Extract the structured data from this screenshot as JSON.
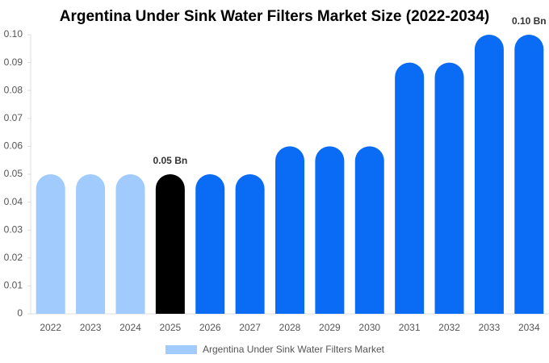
{
  "chart_data": {
    "type": "bar",
    "title": "Argentina Under Sink Water Filters Market Size (2022-2034)",
    "categories": [
      "2022",
      "2023",
      "2024",
      "2025",
      "2026",
      "2027",
      "2028",
      "2029",
      "2030",
      "2031",
      "2032",
      "2033",
      "2034"
    ],
    "series": [
      {
        "name": "Argentina Under Sink Water Filters Market",
        "color": "#a0cbfc",
        "values": [
          0.05,
          0.05,
          0.05,
          0.05,
          0.05,
          0.05,
          0.06,
          0.06,
          0.06,
          0.09,
          0.09,
          0.1,
          0.1
        ],
        "colors": [
          "#a0cbfc",
          "#a0cbfc",
          "#a0cbfc",
          "#000000",
          "#0a6cf5",
          "#0a6cf5",
          "#0a6cf5",
          "#0a6cf5",
          "#0a6cf5",
          "#0a6cf5",
          "#0a6cf5",
          "#0a6cf5",
          "#0a6cf5"
        ],
        "value_labels": [
          null,
          null,
          null,
          "0.05 Bn",
          null,
          null,
          null,
          null,
          null,
          null,
          null,
          null,
          "0.10 Bn"
        ]
      }
    ],
    "ylim": [
      0,
      0.1
    ],
    "yticks": [
      0,
      0.01,
      0.02,
      0.03,
      0.04,
      0.05,
      0.06,
      0.07,
      0.08,
      0.09,
      {
        "value": 0.1,
        "label": "0.10"
      }
    ],
    "grid": false
  }
}
